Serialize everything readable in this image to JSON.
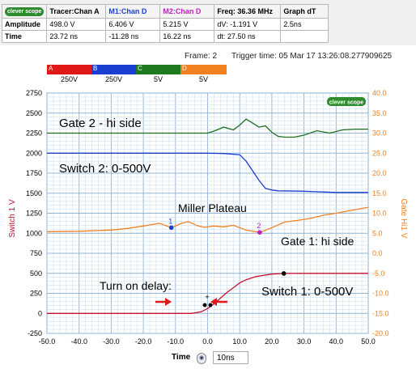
{
  "info": {
    "logo": "clever scope",
    "headers": [
      "Tracer:Chan A",
      "M1:Chan D",
      "M2:Chan D",
      "Freq: 36.36 MHz",
      "Graph dT"
    ],
    "header_colors": [
      "#000000",
      "#1a3fd0",
      "#c020c0",
      "#000000",
      "#000000"
    ],
    "rows": [
      {
        "label": "Amplitude",
        "cells": [
          "498.0 V",
          "6.406 V",
          "5.215 V",
          "dV: -1.191 V",
          "2.5ns"
        ]
      },
      {
        "label": "Time",
        "cells": [
          "23.72 ns",
          "-11.28 ns",
          "16.22 ns",
          "dt:  27.50 ns",
          ""
        ]
      }
    ]
  },
  "frame_text": "Frame: 2",
  "trigger_text": "Trigger time: 05 Mar 17 13:26:08.277909625",
  "channels": [
    {
      "letter": "A",
      "value": "250V",
      "color": "#e01818"
    },
    {
      "letter": "B",
      "value": "250V",
      "color": "#1a3fd0"
    },
    {
      "letter": "C",
      "value": "5V",
      "color": "#1e7a1e"
    },
    {
      "letter": "D",
      "value": "5V",
      "color": "#f08020"
    }
  ],
  "plot_logo": "clever scope",
  "left_axis_title": "Switch 1 V",
  "right_axis_title": "Gate Hi1 V",
  "annotations": {
    "gate2": "Gate 2 - hi side",
    "switch2": "Switch 2: 0-500V",
    "miller": "Miller Plateau",
    "gate1": "Gate 1: hi side",
    "turn_on": "Turn on delay:",
    "switch1": "Switch 1: 0-500V",
    "marker1": "1",
    "marker2": "2"
  },
  "bottom": {
    "time_label": "Time",
    "time_value": "10ns",
    "icon": "time-knob-icon"
  },
  "chart_data": {
    "type": "line",
    "xlim": [
      -50,
      50
    ],
    "x_ticks": [
      "-50.0",
      "-40.0",
      "-30.0",
      "-20.0",
      "-10.0",
      "0.0",
      "10.0",
      "20.0",
      "30.0",
      "40.0",
      "50.0"
    ],
    "y_left_lim": [
      -250,
      2750
    ],
    "y_left_ticks": [
      "-250",
      "0",
      "250",
      "500",
      "750",
      "1000",
      "1250",
      "1500",
      "1750",
      "2000",
      "2250",
      "2500",
      "2750"
    ],
    "y_right_lim": [
      -20,
      40
    ],
    "y_right_ticks": [
      "-20.0",
      "-15.0",
      "-10.0",
      "-5.0",
      "0.0",
      "5.0",
      "10.0",
      "15.0",
      "20.0",
      "25.0",
      "30.0",
      "35.0",
      "40.0"
    ],
    "grid": true,
    "series": [
      {
        "name": "A",
        "color": "#c8102e",
        "axis": "left",
        "x": [
          -50,
          -10,
          -5,
          -2,
          0,
          2,
          4,
          6,
          8,
          10,
          12,
          15,
          20,
          24,
          30,
          40,
          50
        ],
        "y": [
          0,
          0,
          0,
          20,
          60,
          120,
          190,
          260,
          320,
          380,
          420,
          460,
          490,
          498,
          500,
          500,
          500
        ]
      },
      {
        "name": "B",
        "color": "#1a3fd0",
        "axis": "left",
        "x": [
          -50,
          -20,
          0,
          5,
          10,
          12,
          14,
          16,
          18,
          20,
          22,
          30,
          40,
          50
        ],
        "y": [
          2000,
          2000,
          2000,
          1995,
          1980,
          1900,
          1780,
          1660,
          1560,
          1540,
          1530,
          1525,
          1510,
          1510
        ]
      },
      {
        "name": "C",
        "color": "#1e6e1e",
        "axis": "right",
        "x": [
          -50,
          -30,
          -10,
          0,
          2,
          5,
          8,
          10,
          12,
          14,
          16,
          18,
          20,
          22,
          24,
          27,
          30,
          34,
          38,
          42,
          46,
          50
        ],
        "y": [
          30,
          30,
          30,
          30,
          30.5,
          31.5,
          30.8,
          32,
          33.5,
          32.5,
          31.5,
          31.8,
          30.2,
          29.2,
          29,
          29,
          29.5,
          30.6,
          30,
          30.8,
          31,
          31
        ]
      },
      {
        "name": "D",
        "color": "#f08020",
        "axis": "right",
        "x": [
          -50,
          -40,
          -30,
          -25,
          -20,
          -15,
          -11.28,
          -8,
          -6,
          -3,
          -1,
          2,
          5,
          8,
          12,
          16.22,
          20,
          24,
          28,
          32,
          36,
          40,
          44,
          48,
          50
        ],
        "y": [
          5.4,
          5.5,
          5.8,
          6.2,
          6.8,
          7.5,
          6.4,
          7.5,
          7.9,
          6.8,
          6.5,
          6.8,
          6.6,
          7.0,
          5.8,
          5.2,
          6.4,
          7.8,
          8.2,
          8.7,
          9.5,
          10,
          10.6,
          11.2,
          11.5
        ]
      }
    ],
    "markers": [
      {
        "label": "1",
        "x": -11.28,
        "y": 6.406,
        "axis": "right",
        "color": "#1a3fd0"
      },
      {
        "label": "2",
        "x": 16.22,
        "y": 5.215,
        "axis": "right",
        "color": "#c020c0"
      },
      {
        "label": "",
        "x": 23.72,
        "y": 498,
        "axis": "left",
        "color": "#000000"
      }
    ]
  }
}
